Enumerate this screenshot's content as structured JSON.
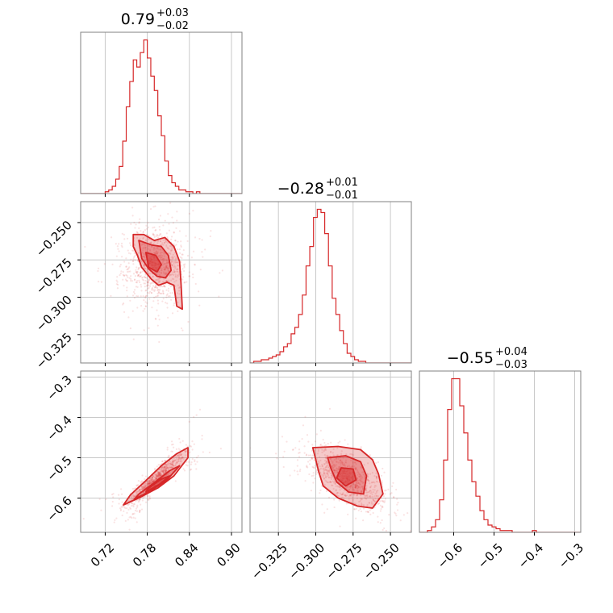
{
  "chart_data": {
    "type": "corner",
    "color": "#d62728",
    "grid": true,
    "params": [
      {
        "median_label": "0.79",
        "plus": "+0.03",
        "minus": "−0.02",
        "range": [
          0.685,
          0.915
        ],
        "ticks": [
          {
            "v": 0.72,
            "label": "0.72"
          },
          {
            "v": 0.78,
            "label": "0.78"
          },
          {
            "v": 0.84,
            "label": "0.84"
          },
          {
            "v": 0.9,
            "label": "0.90"
          }
        ],
        "hist": {
          "x0": 0.685,
          "dx": 0.005,
          "counts": [
            0,
            0,
            0,
            0,
            0,
            0,
            0,
            1,
            2,
            4,
            8,
            15,
            29,
            48,
            62,
            74,
            70,
            78,
            85,
            75,
            65,
            57,
            43,
            32,
            18,
            10,
            6,
            4,
            2,
            2,
            1,
            1,
            0,
            1,
            0,
            0,
            0,
            0,
            0,
            0,
            0,
            0,
            0,
            0,
            0,
            0
          ]
        }
      },
      {
        "median_label": "−0.28",
        "plus": "+0.01",
        "minus": "−0.01",
        "range": [
          -0.344,
          -0.236
        ],
        "ticks": [
          {
            "v": -0.325,
            "label": "−0.325"
          },
          {
            "v": -0.3,
            "label": "−0.300"
          },
          {
            "v": -0.275,
            "label": "−0.275"
          },
          {
            "v": -0.25,
            "label": "−0.250"
          }
        ],
        "hist": {
          "x0": -0.344,
          "dx": 0.0025,
          "counts": [
            0,
            1,
            1,
            2,
            2,
            3,
            4,
            5,
            7,
            10,
            12,
            18,
            22,
            30,
            42,
            60,
            72,
            90,
            95,
            93,
            80,
            60,
            40,
            30,
            20,
            12,
            6,
            4,
            2,
            1,
            1,
            0,
            0,
            0,
            0,
            0,
            0,
            0,
            0,
            0,
            0,
            0,
            0
          ]
        }
      },
      {
        "median_label": "−0.55",
        "plus": "+0.04",
        "minus": "−0.03",
        "range": [
          -0.685,
          -0.285
        ],
        "ticks": [
          {
            "v": -0.6,
            "label": "−0.6"
          },
          {
            "v": -0.5,
            "label": "−0.5"
          },
          {
            "v": -0.4,
            "label": "−0.4"
          },
          {
            "v": -0.3,
            "label": "−0.3"
          }
        ],
        "hist": {
          "x0": -0.685,
          "dx": 0.01,
          "counts": [
            0,
            0,
            1,
            3,
            7,
            18,
            40,
            68,
            85,
            85,
            70,
            55,
            40,
            28,
            20,
            12,
            7,
            4,
            3,
            2,
            1,
            1,
            1,
            0,
            0,
            0,
            0,
            0,
            1,
            0,
            0,
            0,
            0,
            0,
            0,
            0,
            0,
            0,
            0,
            0
          ]
        }
      }
    ],
    "panels_2d": [
      {
        "x_param": 0,
        "y_param": 1,
        "cloud_center": [
          0.792,
          -0.279
        ],
        "cloud_spread": [
          0.022,
          0.013
        ],
        "correlation": 0.0,
        "contours": [
          [
            [
              0.76,
              -0.258
            ],
            [
              0.775,
              -0.258
            ],
            [
              0.79,
              -0.262
            ],
            [
              0.805,
              -0.26
            ],
            [
              0.818,
              -0.266
            ],
            [
              0.826,
              -0.276
            ],
            [
              0.828,
              -0.29
            ],
            [
              0.83,
              -0.308
            ],
            [
              0.822,
              -0.306
            ],
            [
              0.818,
              -0.292
            ],
            [
              0.808,
              -0.29
            ],
            [
              0.796,
              -0.292
            ],
            [
              0.786,
              -0.288
            ],
            [
              0.772,
              -0.28
            ],
            [
              0.766,
              -0.272
            ],
            [
              0.76,
              -0.266
            ]
          ],
          [
            [
              0.768,
              -0.262
            ],
            [
              0.786,
              -0.265
            ],
            [
              0.8,
              -0.266
            ],
            [
              0.81,
              -0.272
            ],
            [
              0.814,
              -0.282
            ],
            [
              0.806,
              -0.287
            ],
            [
              0.794,
              -0.286
            ],
            [
              0.782,
              -0.281
            ],
            [
              0.772,
              -0.274
            ]
          ],
          [
            [
              0.778,
              -0.27
            ],
            [
              0.792,
              -0.272
            ],
            [
              0.8,
              -0.278
            ],
            [
              0.794,
              -0.283
            ],
            [
              0.782,
              -0.28
            ]
          ]
        ]
      },
      {
        "x_param": 0,
        "y_param": 2,
        "cloud_center": [
          0.792,
          -0.553
        ],
        "cloud_spread": [
          0.022,
          0.035
        ],
        "correlation": 0.96,
        "contours": [
          [
            [
              0.746,
              -0.617
            ],
            [
              0.77,
              -0.598
            ],
            [
              0.795,
              -0.575
            ],
            [
              0.818,
              -0.545
            ],
            [
              0.838,
              -0.5
            ],
            [
              0.838,
              -0.475
            ],
            [
              0.822,
              -0.49
            ],
            [
              0.8,
              -0.52
            ],
            [
              0.776,
              -0.56
            ],
            [
              0.756,
              -0.592
            ]
          ],
          [
            [
              0.762,
              -0.602
            ],
            [
              0.785,
              -0.582
            ],
            [
              0.808,
              -0.555
            ],
            [
              0.826,
              -0.52
            ],
            [
              0.812,
              -0.532
            ],
            [
              0.79,
              -0.562
            ],
            [
              0.768,
              -0.59
            ]
          ],
          [
            [
              0.778,
              -0.585
            ],
            [
              0.798,
              -0.565
            ],
            [
              0.812,
              -0.545
            ],
            [
              0.8,
              -0.553
            ],
            [
              0.782,
              -0.575
            ]
          ]
        ]
      },
      {
        "x_param": 1,
        "y_param": 2,
        "cloud_center": [
          -0.279,
          -0.553
        ],
        "cloud_spread": [
          0.013,
          0.035
        ],
        "correlation": -0.7,
        "contours": [
          [
            [
              -0.302,
              -0.475
            ],
            [
              -0.285,
              -0.472
            ],
            [
              -0.27,
              -0.48
            ],
            [
              -0.262,
              -0.505
            ],
            [
              -0.258,
              -0.54
            ],
            [
              -0.255,
              -0.59
            ],
            [
              -0.262,
              -0.625
            ],
            [
              -0.272,
              -0.62
            ],
            [
              -0.285,
              -0.6
            ],
            [
              -0.295,
              -0.57
            ],
            [
              -0.298,
              -0.535
            ],
            [
              -0.3,
              -0.505
            ]
          ],
          [
            [
              -0.292,
              -0.5
            ],
            [
              -0.28,
              -0.495
            ],
            [
              -0.27,
              -0.51
            ],
            [
              -0.266,
              -0.545
            ],
            [
              -0.268,
              -0.59
            ],
            [
              -0.278,
              -0.585
            ],
            [
              -0.286,
              -0.56
            ],
            [
              -0.29,
              -0.525
            ]
          ],
          [
            [
              -0.283,
              -0.525
            ],
            [
              -0.275,
              -0.528
            ],
            [
              -0.273,
              -0.555
            ],
            [
              -0.28,
              -0.57
            ],
            [
              -0.286,
              -0.55
            ]
          ]
        ]
      }
    ]
  }
}
